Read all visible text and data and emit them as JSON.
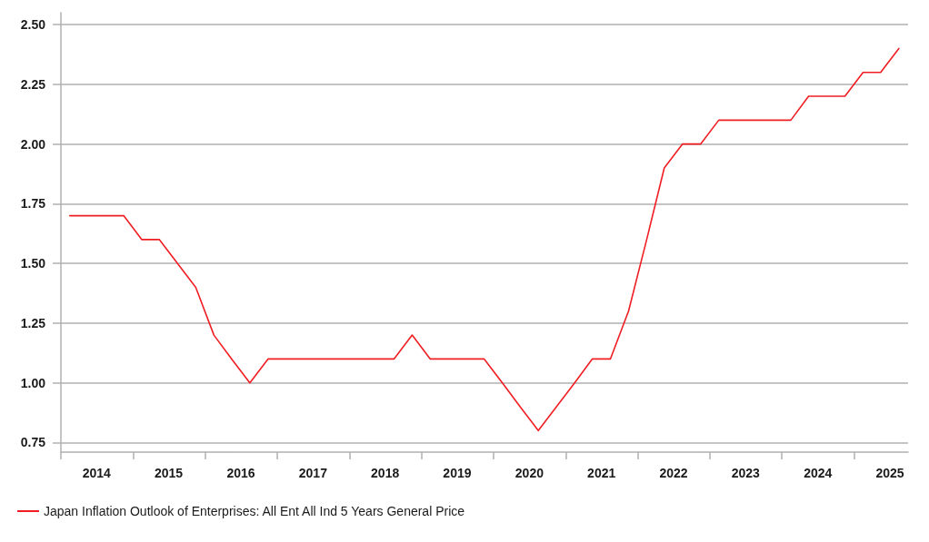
{
  "chart_data": {
    "type": "line",
    "x": [
      "2014-02-15",
      "2014-05-15",
      "2014-08-15",
      "2014-11-15",
      "2015-02-15",
      "2015-05-15",
      "2015-08-15",
      "2015-11-15",
      "2016-02-15",
      "2016-05-15",
      "2016-08-15",
      "2016-11-15",
      "2017-02-15",
      "2017-05-15",
      "2017-08-15",
      "2017-11-15",
      "2018-02-15",
      "2018-05-15",
      "2018-08-15",
      "2018-11-15",
      "2019-02-15",
      "2019-05-15",
      "2019-08-15",
      "2019-11-15",
      "2020-02-15",
      "2020-05-15",
      "2020-08-15",
      "2020-11-15",
      "2021-02-15",
      "2021-05-15",
      "2021-08-15",
      "2021-11-15",
      "2022-02-15",
      "2022-05-15",
      "2022-08-15",
      "2022-11-15",
      "2023-02-15",
      "2023-05-15",
      "2023-08-15",
      "2023-11-15",
      "2024-02-15",
      "2024-05-15",
      "2024-08-15",
      "2024-11-15",
      "2025-02-15",
      "2025-05-15",
      "2025-08-15"
    ],
    "series": [
      {
        "name": "Japan Inflation Outlook of Enterprises: All Ent All Ind 5 Years General Price",
        "color": "#f01e23",
        "values": [
          1.7,
          1.7,
          1.7,
          1.7,
          1.6,
          1.6,
          1.5,
          1.4,
          1.2,
          1.1,
          1.0,
          1.1,
          1.1,
          1.1,
          1.1,
          1.1,
          1.1,
          1.1,
          1.1,
          1.2,
          1.1,
          1.1,
          1.1,
          1.1,
          1.0,
          0.9,
          0.8,
          0.9,
          1.0,
          1.1,
          1.1,
          1.3,
          1.6,
          1.9,
          2.0,
          2.0,
          2.1,
          2.1,
          2.1,
          2.1,
          2.1,
          2.2,
          2.2,
          2.2,
          2.3,
          2.3,
          2.4
        ]
      }
    ],
    "xlim": [
      "2014",
      "2025-10"
    ],
    "xticks": [
      {
        "value": "2014",
        "label": null
      },
      {
        "value": "2014-07",
        "label": "2014"
      },
      {
        "value": "2015",
        "label": null
      },
      {
        "value": "2015-07",
        "label": "2015"
      },
      {
        "value": "2016",
        "label": null
      },
      {
        "value": "2016-07",
        "label": "2016"
      },
      {
        "value": "2017",
        "label": null
      },
      {
        "value": "2017-07",
        "label": "2017"
      },
      {
        "value": "2018",
        "label": null
      },
      {
        "value": "2018-07",
        "label": "2018"
      },
      {
        "value": "2019",
        "label": null
      },
      {
        "value": "2019-07",
        "label": "2019"
      },
      {
        "value": "2020",
        "label": null
      },
      {
        "value": "2020-07",
        "label": "2020"
      },
      {
        "value": "2021",
        "label": null
      },
      {
        "value": "2021-07",
        "label": "2021"
      },
      {
        "value": "2022",
        "label": null
      },
      {
        "value": "2022-07",
        "label": "2022"
      },
      {
        "value": "2023",
        "label": null
      },
      {
        "value": "2023-07",
        "label": "2023"
      },
      {
        "value": "2024",
        "label": null
      },
      {
        "value": "2024-07",
        "label": "2024"
      },
      {
        "value": "2025",
        "label": null
      },
      {
        "value": "2025-07",
        "label": "2025"
      }
    ],
    "ylim": [
      0.71,
      2.55
    ],
    "yticks": [
      {
        "value": 0.75,
        "label": "0.75"
      },
      {
        "value": 1.0,
        "label": "1.00"
      },
      {
        "value": 1.25,
        "label": "1.25"
      },
      {
        "value": 1.5,
        "label": "1.50"
      },
      {
        "value": 1.75,
        "label": "1.75"
      },
      {
        "value": 2.0,
        "label": "2.00"
      },
      {
        "value": 2.25,
        "label": "2.25"
      },
      {
        "value": 2.5,
        "label": "2.50"
      }
    ],
    "grid": "y",
    "legend": "bottom left",
    "marker": "none",
    "line_style": "solid"
  }
}
